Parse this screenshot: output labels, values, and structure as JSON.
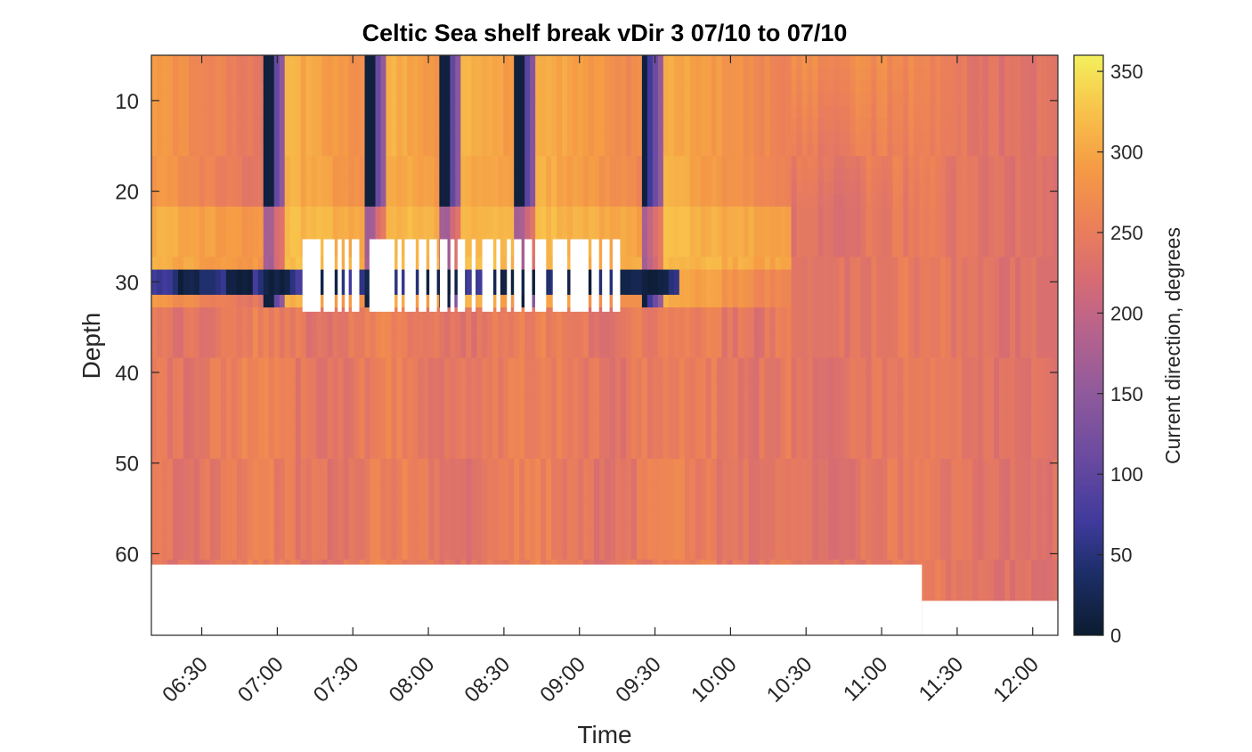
{
  "chart_data": {
    "type": "heatmap",
    "title": "Celtic Sea shelf break vDir 3 07/10 to 07/10",
    "xlabel": "Time",
    "ylabel": "Depth",
    "colorbar_label": "Current direction, degrees",
    "y_axis_direction": "reversed",
    "ylim": [
      5,
      69
    ],
    "xlim": [
      "06:10",
      "12:10"
    ],
    "x_ticks": [
      "06:30",
      "07:00",
      "07:30",
      "08:00",
      "08:30",
      "09:00",
      "09:30",
      "10:00",
      "10:30",
      "11:00",
      "11:30",
      "12:00"
    ],
    "y_ticks": [
      10,
      20,
      30,
      40,
      50,
      60
    ],
    "colorbar_ticks": [
      0,
      50,
      100,
      150,
      200,
      250,
      300,
      350
    ],
    "clim": [
      0,
      360
    ],
    "colormap_stops": [
      {
        "value": 0,
        "color": "#0b1b2f"
      },
      {
        "value": 40,
        "color": "#1d2f6a"
      },
      {
        "value": 70,
        "color": "#3f3a9c"
      },
      {
        "value": 110,
        "color": "#6a4aa0"
      },
      {
        "value": 150,
        "color": "#8f5a9c"
      },
      {
        "value": 190,
        "color": "#b8638c"
      },
      {
        "value": 220,
        "color": "#d66b74"
      },
      {
        "value": 255,
        "color": "#ec8058"
      },
      {
        "value": 290,
        "color": "#f59b45"
      },
      {
        "value": 325,
        "color": "#f8c24a"
      },
      {
        "value": 360,
        "color": "#f3f05c"
      }
    ],
    "field_description_values": {
      "lower_layer_typical_direction": 255,
      "upper_layer_cycle_directions": [
        320,
        230,
        10
      ],
      "dark_band_depth_range": [
        28,
        31
      ],
      "flood_like_transitions_time": [
        "06:55",
        "07:35",
        "08:05",
        "08:35",
        "09:25",
        "10:25"
      ]
    },
    "missing_data": {
      "bottom_mask_depth_before": 61.2,
      "bottom_mask_depth_after": 65.2,
      "bottom_mask_change_time": "11:16",
      "mid_gap_depth_range": [
        25.3,
        33.3
      ],
      "mid_gap_time_range": [
        "07:10",
        "09:15"
      ]
    }
  }
}
